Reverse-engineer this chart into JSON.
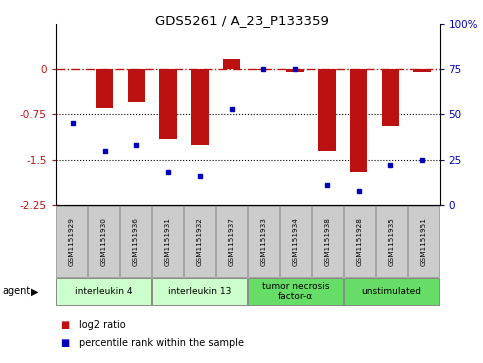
{
  "title": "GDS5261 / A_23_P133359",
  "samples": [
    "GSM1151929",
    "GSM1151930",
    "GSM1151936",
    "GSM1151931",
    "GSM1151932",
    "GSM1151937",
    "GSM1151933",
    "GSM1151934",
    "GSM1151938",
    "GSM1151928",
    "GSM1151935",
    "GSM1151951"
  ],
  "log2_ratio": [
    0.0,
    -0.65,
    -0.55,
    -1.15,
    -1.25,
    0.17,
    -0.02,
    -0.05,
    -1.35,
    -1.7,
    -0.95,
    -0.05
  ],
  "percentile_rank": [
    45,
    30,
    33,
    18,
    16,
    53,
    75,
    75,
    11,
    8,
    22,
    25
  ],
  "ylim_left": [
    -2.25,
    0.75
  ],
  "ylim_right": [
    0,
    100
  ],
  "yticks_left": [
    0,
    -0.75,
    -1.5,
    -2.25
  ],
  "yticks_right": [
    100,
    75,
    50,
    25,
    0
  ],
  "ytick_labels_left": [
    "0",
    "-0.75",
    "-1.5",
    "-2.25"
  ],
  "ytick_labels_right": [
    "100%",
    "75",
    "50",
    "25",
    "0"
  ],
  "group_configs": [
    {
      "label": "interleukin 4",
      "start": 0,
      "end": 2,
      "color": "#ccffcc"
    },
    {
      "label": "interleukin 13",
      "start": 3,
      "end": 5,
      "color": "#ccffcc"
    },
    {
      "label": "tumor necrosis\nfactor-α",
      "start": 6,
      "end": 8,
      "color": "#66dd66"
    },
    {
      "label": "unstimulated",
      "start": 9,
      "end": 11,
      "color": "#66dd66"
    }
  ],
  "bar_color": "#bb1111",
  "scatter_color": "#0000bb",
  "dotted_lines": [
    -0.75,
    -1.5
  ],
  "bg_color": "#ffffff",
  "legend_bar_label": "log2 ratio",
  "legend_scatter_label": "percentile rank within the sample",
  "sample_box_color": "#cccccc",
  "agent_label": "agent"
}
